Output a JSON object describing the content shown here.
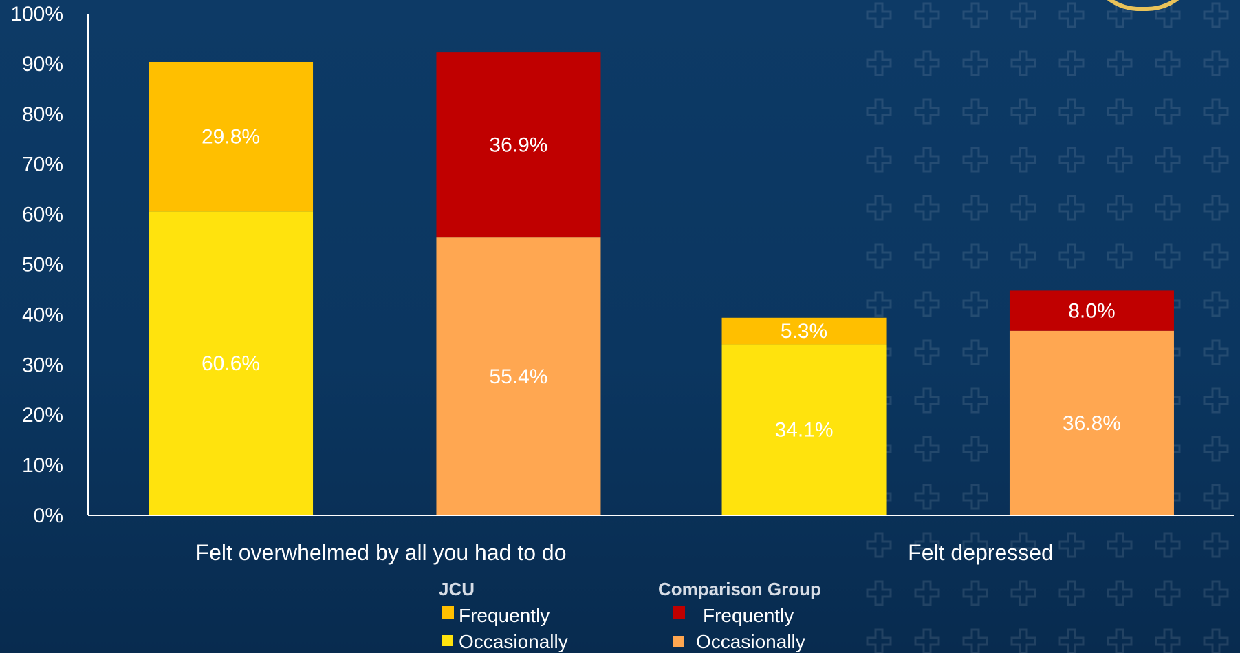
{
  "chart_data": {
    "type": "bar",
    "stacked": true,
    "yaxis": {
      "ylim": [
        0,
        100
      ],
      "ticks": [
        "0%",
        "10%",
        "20%",
        "30%",
        "40%",
        "50%",
        "60%",
        "70%",
        "80%",
        "90%",
        "100%"
      ]
    },
    "categories": [
      "Felt overwhelmed by all you had to do",
      "Felt depressed"
    ],
    "groups": [
      {
        "name": "JCU",
        "series": [
          {
            "name": "Occasionally",
            "color": "#ffe30d",
            "values": [
              60.6,
              34.1
            ],
            "labels": [
              "60.6%",
              "34.1%"
            ]
          },
          {
            "name": "Frequently",
            "color": "#ffbf00",
            "values": [
              29.8,
              5.3
            ],
            "labels": [
              "29.8%",
              "5.3%"
            ]
          }
        ]
      },
      {
        "name": "Comparison Group",
        "series": [
          {
            "name": "Occasionally",
            "color": "#ffa751",
            "values": [
              55.4,
              36.8
            ],
            "labels": [
              "55.4%",
              "36.8%"
            ]
          },
          {
            "name": "Frequently",
            "color": "#c00000",
            "values": [
              36.9,
              8.0
            ],
            "labels": [
              "36.9%",
              "8.0%"
            ]
          }
        ]
      }
    ],
    "legend": {
      "position": "bottom",
      "jcu_title": "JCU",
      "comparison_title": "Comparison Group",
      "items": [
        {
          "group": "JCU",
          "label": "Frequently",
          "color": "#ffbf00"
        },
        {
          "group": "JCU",
          "label": "Occasionally",
          "color": "#ffe30d"
        },
        {
          "group": "Comparison Group",
          "label": "Frequently",
          "color": "#c00000"
        },
        {
          "group": "Comparison Group",
          "label": "Occasionally",
          "color": "#ffa751"
        }
      ]
    },
    "grid": false
  },
  "colors": {
    "background": "#0b3660",
    "axis": "#ffffff",
    "text": "#ffffff"
  }
}
